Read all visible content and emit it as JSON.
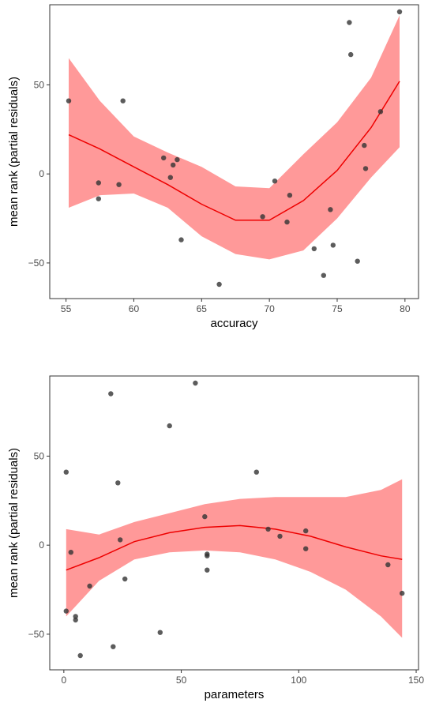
{
  "chart_data": [
    {
      "type": "scatter",
      "xlabel": "accuracy",
      "ylabel": "mean rank (partial residuals)",
      "xlim": [
        53.8,
        81.0
      ],
      "ylim": [
        -70,
        95
      ],
      "xticks": [
        55,
        60,
        65,
        70,
        75,
        80
      ],
      "yticks": [
        -50,
        0,
        50
      ],
      "grid": false,
      "colors": {
        "points": "#333333",
        "fit": "#ee0000",
        "band": "#ff9999"
      },
      "points": {
        "x": [
          55.2,
          57.4,
          57.4,
          58.9,
          59.2,
          62.2,
          62.7,
          62.9,
          63.2,
          63.5,
          66.3,
          69.5,
          70.4,
          71.3,
          71.5,
          73.3,
          74.0,
          74.5,
          74.7,
          75.9,
          76.0,
          76.5,
          77.0,
          77.1,
          78.2,
          79.6
        ],
        "y": [
          41,
          -5,
          -14,
          -6,
          41,
          9,
          -2,
          5,
          8,
          -37,
          -62,
          -24,
          -4,
          -27,
          -12,
          -42,
          -57,
          -20,
          -40,
          85,
          67,
          -49,
          16,
          3,
          35,
          91
        ]
      },
      "fit": {
        "x": [
          55.2,
          57.5,
          60,
          62.5,
          65,
          67.5,
          70,
          72.5,
          75,
          77.5,
          79.6
        ],
        "y": [
          22,
          14,
          4,
          -6,
          -17,
          -26,
          -26,
          -15,
          2,
          26,
          52
        ],
        "lower": [
          -19,
          -12,
          -11,
          -19,
          -35,
          -45,
          -48,
          -43,
          -25,
          -2,
          15
        ],
        "upper": [
          65,
          41,
          21,
          12,
          4,
          -7,
          -8,
          11,
          29,
          54,
          89
        ]
      }
    },
    {
      "type": "scatter",
      "xlabel": "parameters",
      "ylabel": "mean rank (partial residuals)",
      "xlim": [
        -6,
        151
      ],
      "ylim": [
        -70,
        95
      ],
      "xticks": [
        0,
        50,
        100,
        150
      ],
      "yticks": [
        -50,
        0,
        50
      ],
      "grid": false,
      "colors": {
        "points": "#333333",
        "fit": "#ee0000",
        "band": "#ff9999"
      },
      "points": {
        "x": [
          1,
          1,
          3,
          5,
          5,
          7,
          11,
          20,
          21,
          23,
          24,
          26,
          41,
          45,
          56,
          60,
          61,
          61,
          61,
          82,
          87,
          92,
          103,
          103,
          138,
          144
        ],
        "y": [
          41,
          -37,
          -4,
          -40,
          -42,
          -62,
          -23,
          85,
          -57,
          35,
          3,
          -19,
          -49,
          67,
          91,
          16,
          -5,
          -6,
          -14,
          41,
          9,
          5,
          8,
          -2,
          -11,
          -27
        ]
      },
      "fit": {
        "x": [
          1,
          15,
          30,
          45,
          60,
          75,
          90,
          105,
          120,
          135,
          144
        ],
        "y": [
          -14,
          -7,
          2,
          7,
          10,
          11,
          9,
          5,
          -1,
          -6,
          -8
        ],
        "lower": [
          -40,
          -20,
          -8,
          -4,
          -3,
          -4,
          -8,
          -15,
          -25,
          -40,
          -52
        ],
        "upper": [
          9,
          6,
          13,
          18,
          23,
          26,
          27,
          27,
          27,
          31,
          37
        ]
      }
    }
  ]
}
